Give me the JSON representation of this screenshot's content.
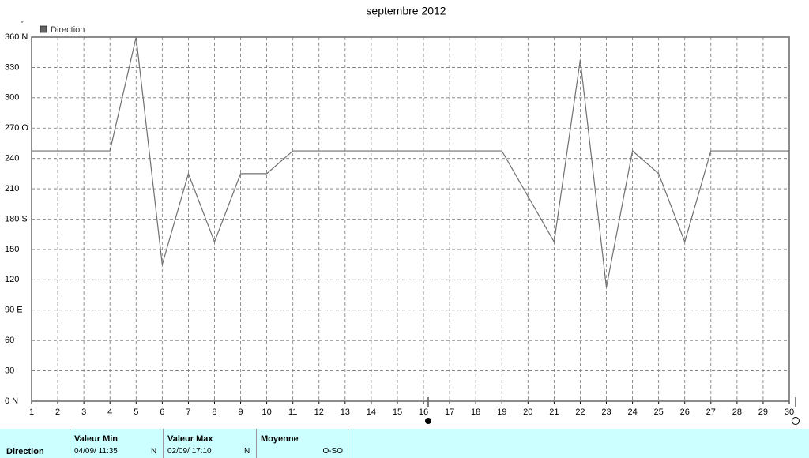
{
  "chart_data": {
    "type": "line",
    "title": "septembre 2012",
    "y_label": "°",
    "x": [
      1,
      2,
      3,
      4,
      5,
      6,
      7,
      8,
      9,
      10,
      11,
      12,
      13,
      14,
      15,
      16,
      17,
      18,
      19,
      20,
      21,
      22,
      23,
      24,
      25,
      26,
      27,
      28,
      29,
      30
    ],
    "series": [
      {
        "name": "Direction",
        "color": "#707070",
        "values": [
          247.5,
          247.5,
          247.5,
          247.5,
          360,
          135,
          225,
          157.5,
          225,
          225,
          247.5,
          247.5,
          247.5,
          247.5,
          247.5,
          247.5,
          247.5,
          247.5,
          247.5,
          202.5,
          157.5,
          337.5,
          112.5,
          247.5,
          225,
          157.5,
          247.5,
          247.5,
          247.5,
          247.5
        ]
      }
    ],
    "xlim": [
      1,
      30
    ],
    "xticks": [
      1,
      2,
      3,
      4,
      5,
      6,
      7,
      8,
      9,
      10,
      11,
      12,
      13,
      14,
      15,
      16,
      17,
      18,
      19,
      20,
      21,
      22,
      23,
      24,
      25,
      26,
      27,
      28,
      29,
      30
    ],
    "ylim": [
      0,
      360
    ],
    "yticks": [
      {
        "value": 0,
        "label": "0  N"
      },
      30,
      60,
      {
        "value": 90,
        "label": "90  E"
      },
      120,
      150,
      {
        "value": 180,
        "label": "180 S"
      },
      210,
      240,
      {
        "value": 270,
        "label": "270 O"
      },
      300,
      330,
      {
        "value": 360,
        "label": "360 N"
      }
    ],
    "grid": true,
    "legend": "top-left"
  },
  "summary": {
    "row_label": "Direction",
    "columns": [
      {
        "header": "Valeur Min",
        "date": "04/09/  11:35",
        "value": "N"
      },
      {
        "header": "Valeur Max",
        "date": "02/09/  17:10",
        "value": "N"
      },
      {
        "header": "Moyenne",
        "value": "O-SO"
      }
    ]
  }
}
